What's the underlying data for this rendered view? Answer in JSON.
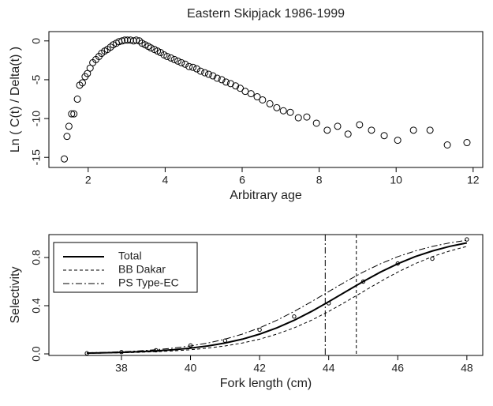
{
  "chart_data": [
    {
      "type": "scatter",
      "title": "Eastern Skipjack 1986-1999",
      "x_label": "Arbitrary age",
      "y_label": "Ln ( C(t) / Delta(t) )",
      "xlim": [
        0.98,
        12.25
      ],
      "ylim": [
        -16.3,
        1.2
      ],
      "xticks": [
        2,
        4,
        6,
        8,
        10,
        12
      ],
      "yticks": [
        0,
        -5,
        -10,
        -15
      ],
      "color": "#000000",
      "x": [
        1.38,
        1.45,
        1.5,
        1.57,
        1.63,
        1.72,
        1.78,
        1.85,
        1.92,
        1.98,
        2.05,
        2.12,
        2.2,
        2.28,
        2.35,
        2.43,
        2.5,
        2.58,
        2.65,
        2.73,
        2.8,
        2.88,
        2.95,
        3.02,
        3.1,
        3.18,
        3.25,
        3.33,
        3.4,
        3.48,
        3.56,
        3.63,
        3.72,
        3.8,
        3.88,
        3.97,
        4.05,
        4.15,
        4.24,
        4.33,
        4.42,
        4.52,
        4.62,
        4.72,
        4.82,
        4.92,
        5.03,
        5.13,
        5.24,
        5.35,
        5.47,
        5.58,
        5.7,
        5.83,
        5.95,
        6.08,
        6.23,
        6.39,
        6.53,
        6.72,
        6.9,
        7.07,
        7.25,
        7.46,
        7.68,
        7.93,
        8.21,
        8.48,
        8.75,
        9.05,
        9.36,
        9.69,
        10.04,
        10.45,
        10.88,
        11.33,
        11.84
      ],
      "values": [
        -15.2,
        -12.3,
        -11,
        -9.4,
        -9.4,
        -7.5,
        -5.7,
        -5.4,
        -4.6,
        -4.2,
        -3.5,
        -2.8,
        -2.4,
        -2,
        -1.6,
        -1.3,
        -1.1,
        -0.8,
        -0.5,
        -0.3,
        -0.1,
        0,
        0.1,
        0.1,
        0.1,
        0,
        0.1,
        0,
        -0.3,
        -0.5,
        -0.7,
        -0.9,
        -1.1,
        -1.3,
        -1.5,
        -1.8,
        -2,
        -2.2,
        -2.4,
        -2.6,
        -2.8,
        -3,
        -3.3,
        -3.4,
        -3.6,
        -3.9,
        -4.1,
        -4.3,
        -4.5,
        -4.8,
        -5,
        -5.3,
        -5.5,
        -5.8,
        -6.1,
        -6.5,
        -6.8,
        -7.2,
        -7.6,
        -8.1,
        -8.6,
        -9,
        -9.2,
        -9.9,
        -9.8,
        -10.6,
        -11.5,
        -11,
        -12,
        -10.8,
        -11.5,
        -12.2,
        -12.8,
        -11.5,
        -11.5,
        -13.4,
        -13.1
      ]
    },
    {
      "type": "line",
      "x_label": "Fork length (cm)",
      "y_label": "Selectivity",
      "xlim": [
        35.9,
        48.46
      ],
      "ylim": [
        -0.013,
        0.99
      ],
      "xticks": [
        38,
        40,
        42,
        44,
        46,
        48
      ],
      "yticks": [
        {
          "value": 0,
          "label": "0.0"
        },
        0.4,
        0.8
      ],
      "x": [
        37,
        37.5,
        38,
        38.5,
        39,
        39.5,
        40,
        40.5,
        41,
        41.5,
        42,
        42.5,
        43,
        43.5,
        44,
        44.5,
        45,
        45.5,
        46,
        46.5,
        47,
        47.5,
        48
      ],
      "series": [
        {
          "name": "Total",
          "color": "#000000",
          "style": "solid",
          "values": [
            0.0065,
            0.0091,
            0.0127,
            0.0178,
            0.0248,
            0.0346,
            0.048,
            0.066,
            0.09,
            0.122,
            0.164,
            0.216,
            0.279,
            0.352,
            0.433,
            0.517,
            0.601,
            0.679,
            0.748,
            0.807,
            0.854,
            0.892,
            0.921
          ]
        },
        {
          "name": "BB Dakar",
          "color": "#000000",
          "style": "dashed",
          "values": [
            0.0047,
            0.0065,
            0.0091,
            0.0127,
            0.0178,
            0.0248,
            0.0346,
            0.048,
            0.066,
            0.09,
            0.122,
            0.164,
            0.216,
            0.279,
            0.352,
            0.433,
            0.517,
            0.601,
            0.679,
            0.748,
            0.807,
            0.854,
            0.892
          ]
        },
        {
          "name": "PS Type-EC",
          "color": "#000000",
          "style": "dashdot",
          "values": [
            0.0091,
            0.0127,
            0.0178,
            0.0248,
            0.0346,
            0.048,
            0.066,
            0.09,
            0.122,
            0.164,
            0.216,
            0.279,
            0.352,
            0.433,
            0.517,
            0.601,
            0.679,
            0.748,
            0.807,
            0.854,
            0.892,
            0.921,
            0.944
          ]
        }
      ],
      "points": {
        "x": [
          37,
          38,
          39,
          40,
          41,
          42,
          43,
          44,
          45,
          46,
          47,
          48
        ],
        "values": [
          0.005,
          0.015,
          0.03,
          0.07,
          0.11,
          0.2,
          0.31,
          0.42,
          0.6,
          0.75,
          0.79,
          0.95
        ]
      },
      "vlines": [
        {
          "value": 43.9,
          "style": "dashdot"
        },
        {
          "value": 44.8,
          "style": "dashed"
        }
      ]
    }
  ]
}
